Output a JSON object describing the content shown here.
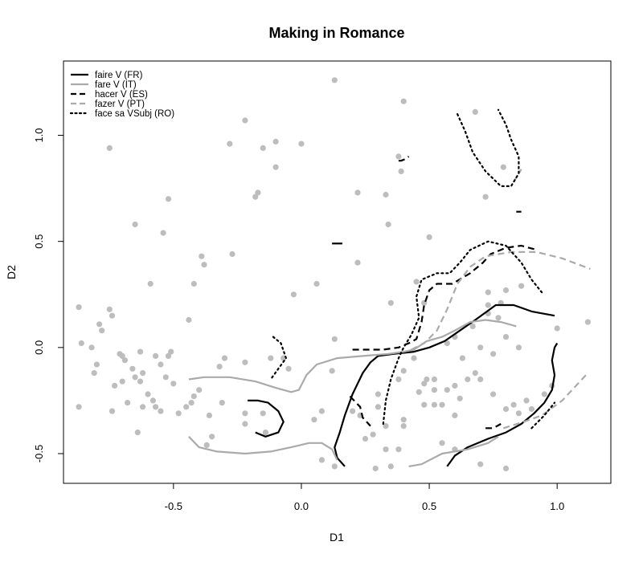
{
  "chart_data": {
    "type": "scatter",
    "title": "Making in Romance",
    "xlabel": "D1",
    "ylabel": "D2",
    "xlim": [
      -0.93,
      1.21
    ],
    "ylim": [
      -0.64,
      1.35
    ],
    "xticks": [
      -0.5,
      0.0,
      0.5,
      1.0
    ],
    "yticks": [
      -0.5,
      0.0,
      0.5,
      1.0
    ],
    "xtick_labels": [
      "-0.5",
      "0.0",
      "0.5",
      "1.0"
    ],
    "ytick_labels": [
      "-0.5",
      "0.0",
      "0.5",
      "1.0"
    ],
    "legend_position": "top-left",
    "points": [
      [
        0.13,
        1.26
      ],
      [
        0.4,
        1.16
      ],
      [
        -0.22,
        1.07
      ],
      [
        0.68,
        1.11
      ],
      [
        -0.75,
        0.94
      ],
      [
        -0.28,
        0.96
      ],
      [
        -0.15,
        0.94
      ],
      [
        -0.1,
        0.97
      ],
      [
        0.0,
        0.96
      ],
      [
        -0.1,
        0.85
      ],
      [
        0.38,
        0.9
      ],
      [
        0.39,
        0.83
      ],
      [
        0.79,
        0.85
      ],
      [
        -0.17,
        0.73
      ],
      [
        -0.18,
        0.71
      ],
      [
        0.22,
        0.73
      ],
      [
        0.33,
        0.72
      ],
      [
        -0.52,
        0.7
      ],
      [
        -0.65,
        0.58
      ],
      [
        0.72,
        0.71
      ],
      [
        0.34,
        0.58
      ],
      [
        -0.54,
        0.54
      ],
      [
        0.5,
        0.52
      ],
      [
        0.22,
        0.4
      ],
      [
        -0.39,
        0.43
      ],
      [
        -0.27,
        0.44
      ],
      [
        -0.38,
        0.39
      ],
      [
        0.45,
        0.31
      ],
      [
        0.06,
        0.3
      ],
      [
        -0.59,
        0.3
      ],
      [
        -0.42,
        0.3
      ],
      [
        0.73,
        0.26
      ],
      [
        0.86,
        0.29
      ],
      [
        -0.03,
        0.25
      ],
      [
        0.8,
        0.27
      ],
      [
        -0.87,
        0.19
      ],
      [
        -0.75,
        0.18
      ],
      [
        -0.74,
        0.15
      ],
      [
        -0.44,
        0.13
      ],
      [
        -0.79,
        0.11
      ],
      [
        -0.78,
        0.08
      ],
      [
        -0.86,
        0.02
      ],
      [
        -0.82,
        0.0
      ],
      [
        1.12,
        0.12
      ],
      [
        1.0,
        0.09
      ],
      [
        0.13,
        0.04
      ],
      [
        -0.71,
        -0.03
      ],
      [
        -0.7,
        -0.04
      ],
      [
        -0.69,
        -0.06
      ],
      [
        -0.63,
        -0.02
      ],
      [
        -0.66,
        -0.1
      ],
      [
        -0.57,
        -0.04
      ],
      [
        -0.52,
        -0.04
      ],
      [
        -0.51,
        -0.02
      ],
      [
        -0.55,
        -0.08
      ],
      [
        -0.53,
        -0.14
      ],
      [
        -0.5,
        -0.17
      ],
      [
        -0.63,
        -0.16
      ],
      [
        -0.62,
        -0.12
      ],
      [
        -0.65,
        -0.14
      ],
      [
        -0.7,
        -0.16
      ],
      [
        -0.73,
        -0.18
      ],
      [
        -0.8,
        -0.08
      ],
      [
        -0.81,
        -0.12
      ],
      [
        -0.6,
        -0.22
      ],
      [
        -0.58,
        -0.25
      ],
      [
        -0.57,
        -0.28
      ],
      [
        -0.55,
        -0.3
      ],
      [
        -0.62,
        -0.28
      ],
      [
        -0.68,
        -0.26
      ],
      [
        -0.74,
        -0.3
      ],
      [
        -0.87,
        -0.28
      ],
      [
        -0.64,
        -0.4
      ],
      [
        -0.3,
        -0.05
      ],
      [
        -0.32,
        -0.09
      ],
      [
        -0.22,
        -0.07
      ],
      [
        -0.12,
        -0.05
      ],
      [
        -0.4,
        -0.2
      ],
      [
        -0.42,
        -0.23
      ],
      [
        -0.43,
        -0.26
      ],
      [
        -0.45,
        -0.28
      ],
      [
        -0.48,
        -0.31
      ],
      [
        -0.31,
        -0.26
      ],
      [
        -0.36,
        -0.32
      ],
      [
        -0.35,
        -0.42
      ],
      [
        -0.37,
        -0.46
      ],
      [
        -0.22,
        -0.31
      ],
      [
        -0.22,
        -0.36
      ],
      [
        -0.15,
        -0.31
      ],
      [
        -0.14,
        -0.4
      ],
      [
        -0.07,
        -0.05
      ],
      [
        -0.05,
        -0.1
      ],
      [
        0.12,
        -0.11
      ],
      [
        0.05,
        -0.34
      ],
      [
        0.08,
        -0.3
      ],
      [
        0.08,
        -0.53
      ],
      [
        0.13,
        -0.56
      ],
      [
        0.29,
        -0.57
      ],
      [
        0.33,
        -0.48
      ],
      [
        0.35,
        -0.56
      ],
      [
        0.38,
        -0.48
      ],
      [
        0.4,
        -0.34
      ],
      [
        0.4,
        -0.37
      ],
      [
        0.33,
        -0.37
      ],
      [
        0.28,
        -0.41
      ],
      [
        0.25,
        -0.43
      ],
      [
        0.23,
        -0.32
      ],
      [
        0.2,
        -0.3
      ],
      [
        0.3,
        -0.28
      ],
      [
        0.3,
        -0.22
      ],
      [
        0.38,
        -0.15
      ],
      [
        0.4,
        -0.11
      ],
      [
        0.44,
        -0.05
      ],
      [
        0.46,
        -0.21
      ],
      [
        0.48,
        -0.17
      ],
      [
        0.49,
        -0.15
      ],
      [
        0.52,
        -0.15
      ],
      [
        0.52,
        -0.2
      ],
      [
        0.48,
        -0.27
      ],
      [
        0.52,
        -0.27
      ],
      [
        0.55,
        -0.27
      ],
      [
        0.57,
        -0.2
      ],
      [
        0.6,
        -0.18
      ],
      [
        0.62,
        -0.24
      ],
      [
        0.6,
        -0.32
      ],
      [
        0.63,
        -0.05
      ],
      [
        0.68,
        -0.12
      ],
      [
        0.65,
        -0.15
      ],
      [
        0.7,
        -0.15
      ],
      [
        0.75,
        -0.22
      ],
      [
        0.8,
        -0.29
      ],
      [
        0.83,
        -0.27
      ],
      [
        0.85,
        -0.31
      ],
      [
        0.88,
        -0.25
      ],
      [
        0.9,
        -0.29
      ],
      [
        0.95,
        -0.22
      ],
      [
        0.98,
        -0.18
      ],
      [
        0.57,
        0.02
      ],
      [
        0.6,
        0.05
      ],
      [
        0.7,
        0.0
      ],
      [
        0.75,
        -0.03
      ],
      [
        0.8,
        0.05
      ],
      [
        0.85,
        0.0
      ],
      [
        0.67,
        0.1
      ],
      [
        0.73,
        0.16
      ],
      [
        0.77,
        0.14
      ],
      [
        0.73,
        0.2
      ],
      [
        0.78,
        0.21
      ],
      [
        0.48,
        0.21
      ],
      [
        0.35,
        0.21
      ],
      [
        0.55,
        -0.45
      ],
      [
        0.6,
        -0.48
      ],
      [
        0.7,
        -0.55
      ],
      [
        0.8,
        -0.57
      ]
    ],
    "series": [
      {
        "name": "faire V (FR)",
        "color": "#000000",
        "dash": "solid",
        "paths": [
          [
            [
              0.17,
              -0.56
            ],
            [
              0.14,
              -0.52
            ],
            [
              0.13,
              -0.47
            ],
            [
              0.15,
              -0.4
            ],
            [
              0.17,
              -0.32
            ],
            [
              0.2,
              -0.22
            ],
            [
              0.24,
              -0.12
            ],
            [
              0.27,
              -0.07
            ],
            [
              0.3,
              -0.04
            ],
            [
              0.36,
              -0.03
            ],
            [
              0.44,
              -0.02
            ],
            [
              0.5,
              0.0
            ],
            [
              0.56,
              0.03
            ],
            [
              0.62,
              0.08
            ],
            [
              0.68,
              0.13
            ],
            [
              0.76,
              0.2
            ],
            [
              0.83,
              0.2
            ],
            [
              0.9,
              0.17
            ],
            [
              0.99,
              0.15
            ]
          ],
          [
            [
              0.57,
              -0.56
            ],
            [
              0.6,
              -0.51
            ],
            [
              0.65,
              -0.47
            ],
            [
              0.73,
              -0.43
            ],
            [
              0.8,
              -0.4
            ],
            [
              0.86,
              -0.36
            ],
            [
              0.91,
              -0.31
            ],
            [
              0.95,
              -0.26
            ],
            [
              0.98,
              -0.2
            ],
            [
              0.99,
              -0.13
            ],
            [
              0.98,
              -0.06
            ],
            [
              0.99,
              0.0
            ],
            [
              1.0,
              0.02
            ]
          ],
          [
            [
              -0.18,
              -0.4
            ],
            [
              -0.14,
              -0.42
            ],
            [
              -0.09,
              -0.4
            ],
            [
              -0.07,
              -0.35
            ],
            [
              -0.09,
              -0.3
            ],
            [
              -0.13,
              -0.26
            ],
            [
              -0.17,
              -0.25
            ],
            [
              -0.21,
              -0.25
            ]
          ],
          [
            [
              0.12,
              0.49
            ],
            [
              0.16,
              0.49
            ]
          ],
          [
            [
              0.84,
              0.64
            ],
            [
              0.86,
              0.64
            ]
          ]
        ]
      },
      {
        "name": "fare V (IT)",
        "color": "#aaaaaa",
        "dash": "solid",
        "paths": [
          [
            [
              -0.44,
              -0.15
            ],
            [
              -0.38,
              -0.14
            ],
            [
              -0.28,
              -0.14
            ],
            [
              -0.18,
              -0.16
            ],
            [
              -0.1,
              -0.19
            ],
            [
              -0.04,
              -0.21
            ],
            [
              -0.01,
              -0.2
            ],
            [
              0.02,
              -0.13
            ],
            [
              0.06,
              -0.08
            ],
            [
              0.14,
              -0.05
            ],
            [
              0.24,
              -0.04
            ],
            [
              0.34,
              -0.03
            ],
            [
              0.4,
              -0.02
            ],
            [
              0.44,
              -0.01
            ],
            [
              0.49,
              0.03
            ],
            [
              0.55,
              0.05
            ],
            [
              0.6,
              0.08
            ],
            [
              0.66,
              0.12
            ],
            [
              0.72,
              0.13
            ],
            [
              0.78,
              0.12
            ],
            [
              0.84,
              0.1
            ]
          ],
          [
            [
              -0.44,
              -0.42
            ],
            [
              -0.4,
              -0.47
            ],
            [
              -0.33,
              -0.49
            ],
            [
              -0.22,
              -0.5
            ],
            [
              -0.12,
              -0.49
            ],
            [
              -0.04,
              -0.47
            ],
            [
              0.03,
              -0.45
            ],
            [
              0.08,
              -0.45
            ],
            [
              0.12,
              -0.48
            ],
            [
              0.14,
              -0.53
            ]
          ],
          [
            [
              0.42,
              -0.56
            ],
            [
              0.47,
              -0.55
            ],
            [
              0.55,
              -0.5
            ],
            [
              0.65,
              -0.48
            ],
            [
              0.73,
              -0.45
            ],
            [
              0.77,
              -0.42
            ]
          ]
        ]
      },
      {
        "name": "hacer V (ES)",
        "color": "#000000",
        "dash": "dashed",
        "paths": [
          [
            [
              0.2,
              -0.01
            ],
            [
              0.25,
              -0.01
            ],
            [
              0.32,
              -0.01
            ],
            [
              0.38,
              0.0
            ],
            [
              0.42,
              0.02
            ],
            [
              0.45,
              0.04
            ],
            [
              0.47,
              0.12
            ],
            [
              0.48,
              0.2
            ],
            [
              0.5,
              0.27
            ],
            [
              0.53,
              0.3
            ],
            [
              0.59,
              0.3
            ],
            [
              0.66,
              0.35
            ],
            [
              0.71,
              0.4
            ],
            [
              0.74,
              0.44
            ],
            [
              0.8,
              0.47
            ],
            [
              0.86,
              0.48
            ],
            [
              0.92,
              0.46
            ]
          ],
          [
            [
              0.38,
              0.88
            ],
            [
              0.39,
              0.88
            ],
            [
              0.41,
              0.89
            ],
            [
              0.42,
              0.9
            ]
          ],
          [
            [
              0.19,
              -0.23
            ],
            [
              0.23,
              -0.28
            ],
            [
              0.24,
              -0.33
            ],
            [
              0.27,
              -0.37
            ]
          ],
          [
            [
              0.72,
              -0.38
            ],
            [
              0.75,
              -0.38
            ],
            [
              0.78,
              -0.36
            ]
          ]
        ]
      },
      {
        "name": "fazer V (PT)",
        "color": "#aaaaaa",
        "dash": "dashed",
        "paths": [
          [
            [
              0.43,
              -0.01
            ],
            [
              0.48,
              0.02
            ],
            [
              0.53,
              0.08
            ],
            [
              0.57,
              0.18
            ],
            [
              0.61,
              0.3
            ],
            [
              0.66,
              0.38
            ],
            [
              0.72,
              0.43
            ],
            [
              0.82,
              0.45
            ],
            [
              0.92,
              0.45
            ],
            [
              1.02,
              0.42
            ],
            [
              1.13,
              0.37
            ]
          ],
          [
            [
              0.79,
              -0.38
            ],
            [
              0.87,
              -0.35
            ],
            [
              0.94,
              -0.32
            ],
            [
              1.02,
              -0.25
            ],
            [
              1.12,
              -0.12
            ]
          ],
          [
            [
              0.83,
              0.78
            ],
            [
              0.86,
              0.84
            ]
          ]
        ]
      },
      {
        "name": "face sa VSubj (RO)",
        "color": "#000000",
        "dash": "dotted",
        "paths": [
          [
            [
              0.61,
              1.1
            ],
            [
              0.64,
              1.02
            ],
            [
              0.67,
              0.92
            ],
            [
              0.72,
              0.83
            ],
            [
              0.78,
              0.76
            ],
            [
              0.82,
              0.76
            ],
            [
              0.85,
              0.82
            ],
            [
              0.85,
              0.9
            ],
            [
              0.82,
              0.98
            ],
            [
              0.8,
              1.05
            ],
            [
              0.77,
              1.12
            ]
          ],
          [
            [
              0.32,
              -0.36
            ],
            [
              0.33,
              -0.25
            ],
            [
              0.35,
              -0.15
            ],
            [
              0.38,
              -0.05
            ],
            [
              0.4,
              0.0
            ],
            [
              0.43,
              0.06
            ],
            [
              0.46,
              0.14
            ],
            [
              0.45,
              0.24
            ],
            [
              0.47,
              0.32
            ],
            [
              0.53,
              0.35
            ],
            [
              0.58,
              0.35
            ],
            [
              0.62,
              0.4
            ],
            [
              0.66,
              0.46
            ],
            [
              0.73,
              0.5
            ],
            [
              0.8,
              0.48
            ],
            [
              0.86,
              0.4
            ],
            [
              0.9,
              0.32
            ],
            [
              0.94,
              0.26
            ]
          ],
          [
            [
              -0.11,
              0.05
            ],
            [
              -0.08,
              0.02
            ],
            [
              -0.06,
              -0.05
            ],
            [
              -0.09,
              -0.1
            ],
            [
              -0.12,
              -0.15
            ]
          ],
          [
            [
              0.9,
              -0.38
            ],
            [
              0.95,
              -0.32
            ],
            [
              0.99,
              -0.26
            ]
          ]
        ]
      }
    ]
  }
}
